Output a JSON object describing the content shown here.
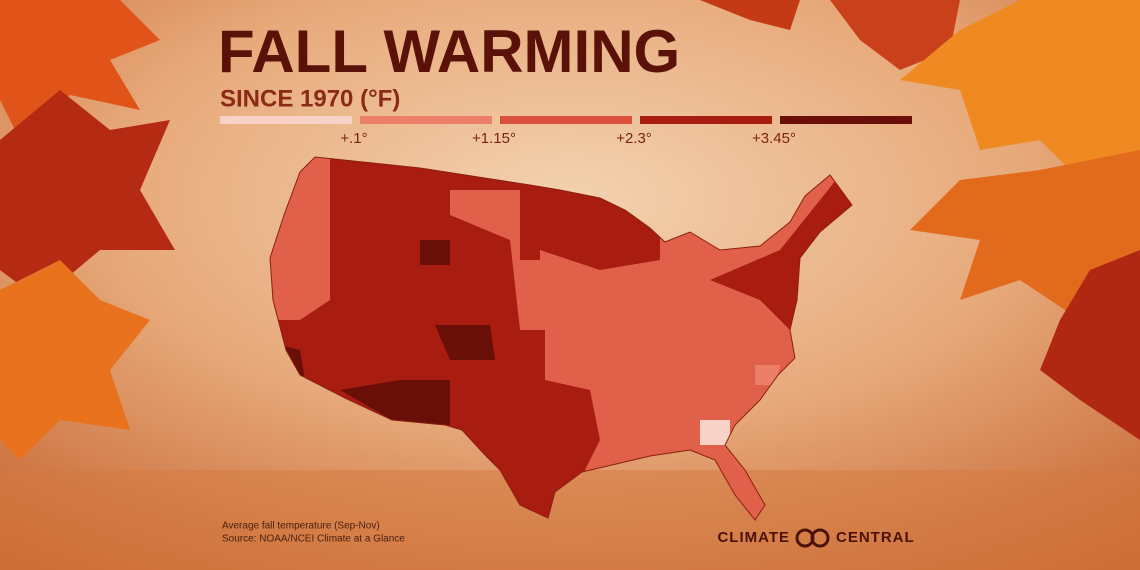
{
  "header": {
    "title": "FALL WARMING",
    "subtitle": "SINCE 1970 (°F)"
  },
  "legend": {
    "colors": [
      "#f8d2c6",
      "#eb7f68",
      "#d9503c",
      "#a91c10",
      "#6a0e08"
    ],
    "labels": [
      "+.1°",
      "+1.15°",
      "+2.3°",
      "+3.45°"
    ]
  },
  "source": {
    "lines": [
      "Average fall temperature (Sep-Nov)",
      "Source: NOAA/NCEI Climate at a Glance"
    ]
  },
  "logo": {
    "left": "CLIMATE",
    "right": "CENTRAL"
  }
}
